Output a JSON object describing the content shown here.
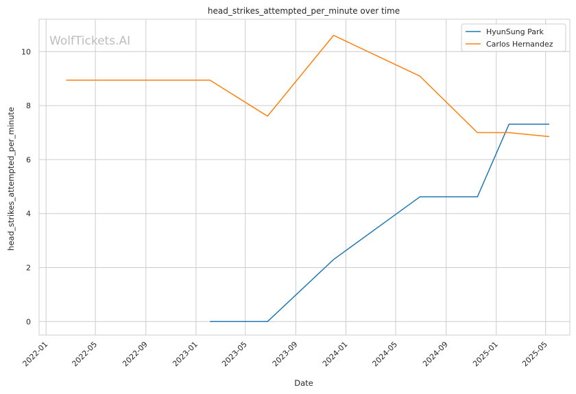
{
  "chart_data": {
    "type": "line",
    "title": "head_strikes_attempted_per_minute over time",
    "xlabel": "Date",
    "ylabel": "head_strikes_attempted_per_minute",
    "watermark": "WolfTickets.AI",
    "x_ticks": [
      "2022-01",
      "2022-05",
      "2022-09",
      "2023-01",
      "2023-05",
      "2023-09",
      "2024-01",
      "2024-05",
      "2024-09",
      "2025-01",
      "2025-05"
    ],
    "y_ticks": [
      0,
      2,
      4,
      6,
      8,
      10
    ],
    "xlim": [
      "2021-12-15",
      "2025-06-29"
    ],
    "ylim": [
      -0.5,
      11.2
    ],
    "grid": true,
    "legend_position": "top-right",
    "colors": {
      "HyunSung Park": "#1f77b4",
      "Carlos Hernandez": "#ff7f0e"
    },
    "series": [
      {
        "name": "HyunSung Park",
        "color": "#1f77b4",
        "points": [
          [
            "2023-02-04",
            0.0
          ],
          [
            "2023-06-24",
            0.0
          ],
          [
            "2023-12-02",
            2.3
          ],
          [
            "2024-06-29",
            4.62
          ],
          [
            "2024-11-16",
            4.62
          ],
          [
            "2025-02-01",
            7.31
          ],
          [
            "2025-05-10",
            7.31
          ]
        ]
      },
      {
        "name": "Carlos Hernandez",
        "color": "#ff7f0e",
        "points": [
          [
            "2022-02-19",
            8.94
          ],
          [
            "2023-02-04",
            8.94
          ],
          [
            "2023-06-24",
            7.61
          ],
          [
            "2023-12-02",
            10.6
          ],
          [
            "2024-06-29",
            9.09
          ],
          [
            "2024-11-16",
            7.0
          ],
          [
            "2025-02-01",
            7.0
          ],
          [
            "2025-05-10",
            6.85
          ]
        ]
      }
    ]
  }
}
